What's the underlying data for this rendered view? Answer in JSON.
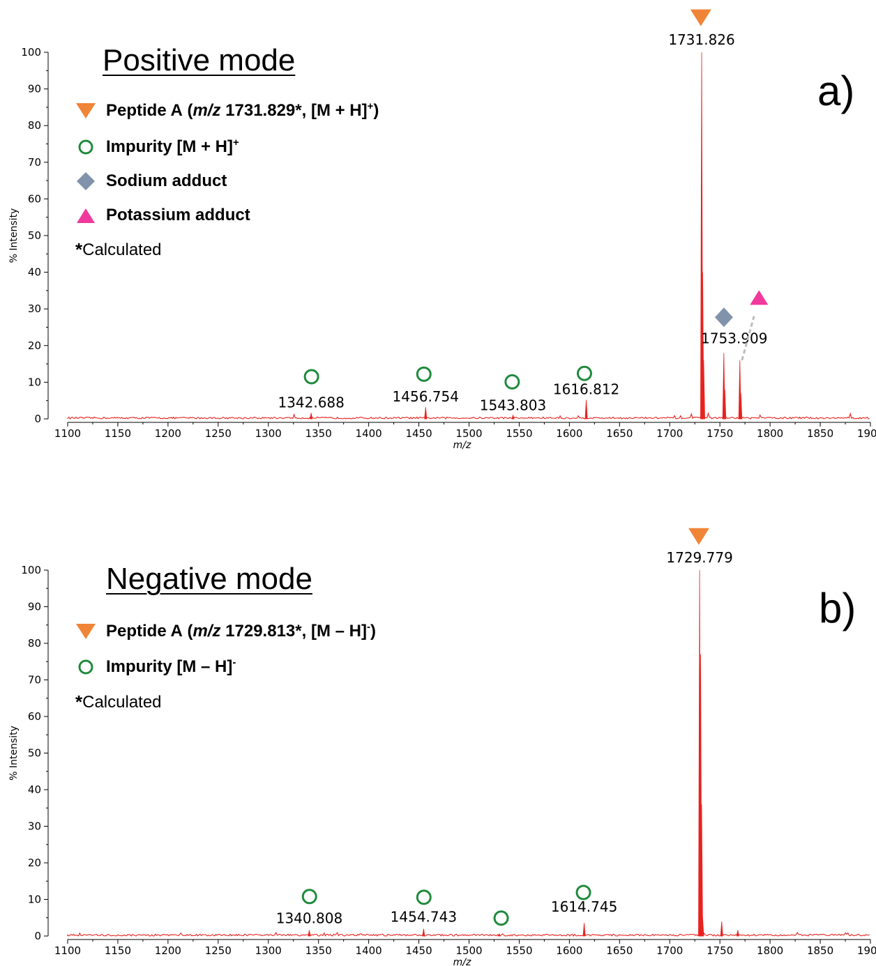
{
  "colors": {
    "spectrum": "#e8231f",
    "peptide_marker": "#f08437",
    "impurity_marker": "#1f8a3c",
    "sodium_marker": "#8093ab",
    "potassium_marker": "#f0399c",
    "connector": "#bdbdbd"
  },
  "chart_data": [
    {
      "type": "line",
      "title": "Positive mode",
      "panel_label": "a)",
      "xlabel": "m/z",
      "ylabel": "% Intensity",
      "xlim": [
        1100,
        1900
      ],
      "ylim": [
        0,
        100
      ],
      "x_ticks": [
        "1100",
        "1150",
        "1200",
        "1250",
        "1300",
        "1350",
        "1400",
        "1450",
        "1500",
        "1550",
        "1600",
        "1650",
        "1700",
        "1750",
        "1800",
        "1850",
        "1900"
      ],
      "y_ticks": [
        "0",
        "10",
        "20",
        "30",
        "40",
        "50",
        "60",
        "70",
        "80",
        "90",
        "100"
      ],
      "legend": {
        "peptide": {
          "name": "Peptide A",
          "mz_prefix": "m/z",
          "mz_value": "1731.829",
          "star": "*",
          "ion": ", [M + H]",
          "charge": "+",
          "close": ")"
        },
        "impurity": {
          "text": "Impurity [M + H]",
          "charge": "+"
        },
        "sodium": {
          "text": "Sodium adduct"
        },
        "potassium": {
          "text": "Potassium adduct"
        },
        "note_star": "*",
        "note_text": "Calculated"
      },
      "peaks": [
        {
          "mz": 1342.688,
          "intensity": 1.6,
          "label": "1342.688"
        },
        {
          "mz": 1456.754,
          "intensity": 3.2,
          "label": "1456.754"
        },
        {
          "mz": 1543.803,
          "intensity": 1.0,
          "label": "1543.803"
        },
        {
          "mz": 1616.812,
          "intensity": 5.2,
          "label": "1616.812"
        },
        {
          "mz": 1731.826,
          "intensity": 100,
          "label": "1731.826"
        },
        {
          "mz": 1732.83,
          "intensity": 40,
          "label": ""
        },
        {
          "mz": 1733.83,
          "intensity": 16,
          "label": ""
        },
        {
          "mz": 1753.909,
          "intensity": 18,
          "label": "1753.909"
        },
        {
          "mz": 1754.91,
          "intensity": 8,
          "label": ""
        },
        {
          "mz": 1769.88,
          "intensity": 16,
          "label": ""
        },
        {
          "mz": 1770.88,
          "intensity": 7,
          "label": ""
        }
      ],
      "markers": [
        {
          "type": "impurity",
          "mz": 1343,
          "intensity": 11.5
        },
        {
          "type": "impurity",
          "mz": 1455,
          "intensity": 12.2
        },
        {
          "type": "impurity",
          "mz": 1543,
          "intensity": 10.1
        },
        {
          "type": "impurity",
          "mz": 1615,
          "intensity": 12.4
        },
        {
          "type": "peptide",
          "mz": 1731,
          "intensity": 109.4
        },
        {
          "type": "sodium",
          "mz": 1754,
          "intensity": 27.7
        },
        {
          "type": "potassium",
          "mz": 1789,
          "intensity": 33.0
        }
      ],
      "connector": {
        "from": [
          1772,
          16
        ],
        "to": [
          1784,
          28
        ]
      }
    },
    {
      "type": "line",
      "title": "Negative mode",
      "panel_label": "b)",
      "xlabel": "m/z",
      "ylabel": "% Intensity",
      "xlim": [
        1100,
        1900
      ],
      "ylim": [
        0,
        100
      ],
      "x_ticks": [
        "1100",
        "1150",
        "1200",
        "1250",
        "1300",
        "1350",
        "1400",
        "1450",
        "1500",
        "1550",
        "1600",
        "1650",
        "1700",
        "1750",
        "1800",
        "1850",
        "1900"
      ],
      "y_ticks": [
        "0",
        "10",
        "20",
        "30",
        "40",
        "50",
        "60",
        "70",
        "80",
        "90",
        "100"
      ],
      "legend": {
        "peptide": {
          "name": "Peptide A",
          "mz_prefix": "m/z",
          "mz_value": "1729.813",
          "star": "*",
          "ion": ", [M – H]",
          "charge": "-",
          "close": ")"
        },
        "impurity": {
          "text": "Impurity [M – H]",
          "charge": "-"
        },
        "note_star": "*",
        "note_text": "Calculated"
      },
      "peaks": [
        {
          "mz": 1340.808,
          "intensity": 1.6,
          "label": "1340.808"
        },
        {
          "mz": 1454.743,
          "intensity": 2.0,
          "label": "1454.743"
        },
        {
          "mz": 1530.0,
          "intensity": 0.6,
          "label": ""
        },
        {
          "mz": 1614.745,
          "intensity": 3.6,
          "label": "1614.745"
        },
        {
          "mz": 1729.779,
          "intensity": 100,
          "label": "1729.779"
        },
        {
          "mz": 1730.78,
          "intensity": 77,
          "label": ""
        },
        {
          "mz": 1731.78,
          "intensity": 36,
          "label": ""
        },
        {
          "mz": 1732.78,
          "intensity": 5,
          "label": ""
        },
        {
          "mz": 1751.8,
          "intensity": 4,
          "label": ""
        },
        {
          "mz": 1767.8,
          "intensity": 1.6,
          "label": ""
        }
      ],
      "markers": [
        {
          "type": "impurity",
          "mz": 1341,
          "intensity": 10.8
        },
        {
          "type": "impurity",
          "mz": 1455,
          "intensity": 10.6
        },
        {
          "type": "impurity",
          "mz": 1532,
          "intensity": 4.9
        },
        {
          "type": "impurity",
          "mz": 1614,
          "intensity": 11.9
        },
        {
          "type": "peptide",
          "mz": 1729,
          "intensity": 109.2
        }
      ]
    }
  ]
}
